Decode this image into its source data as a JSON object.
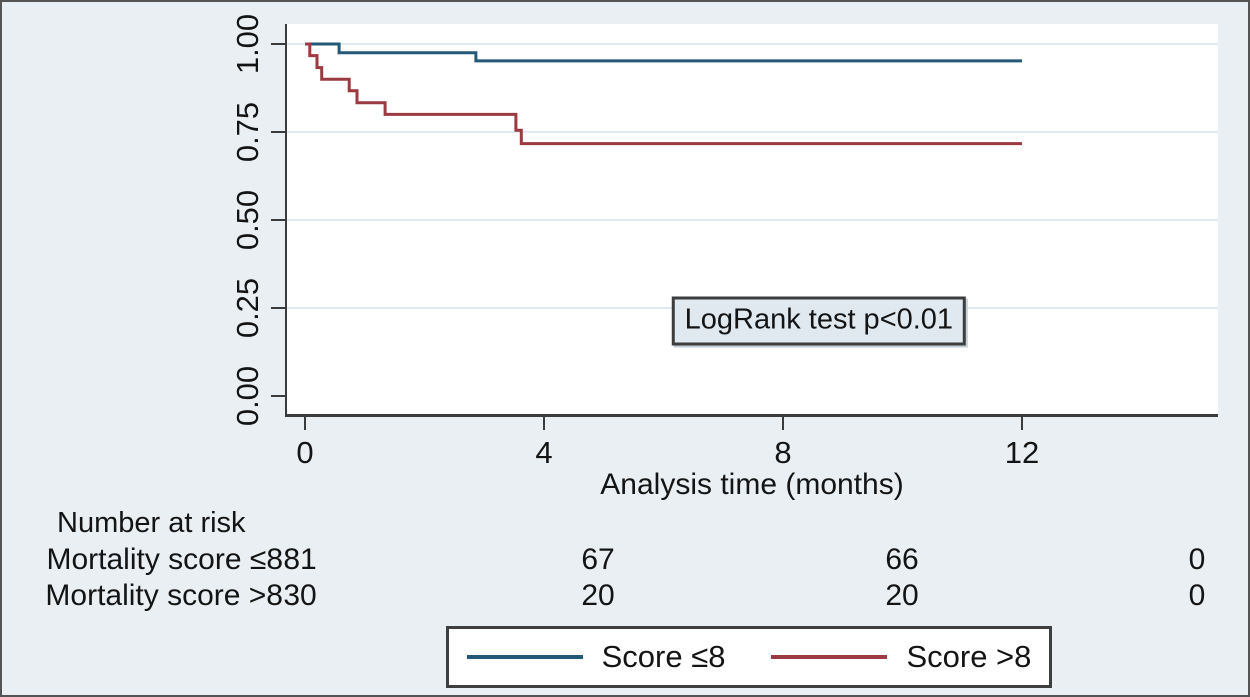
{
  "colors": {
    "background": "#e9eff2",
    "plot_background": "#ffffff",
    "grid": "#dfeaf2",
    "axis": "#3b3b3b",
    "navy": "#235879",
    "maroon": "#9c3a41"
  },
  "chart_data": {
    "type": "line",
    "subtype": "kaplan-meier-step",
    "title": "",
    "xlabel": "Analysis time (months)",
    "ylabel": "",
    "x_tick_labels": [
      "0",
      "4",
      "8",
      "12"
    ],
    "x_tick_values": [
      0,
      4,
      8,
      12
    ],
    "y_tick_labels": [
      "0.00",
      "0.25",
      "0.50",
      "0.75",
      "1.00"
    ],
    "y_tick_values": [
      0,
      0.25,
      0.5,
      0.75,
      1
    ],
    "xlim": [
      0,
      15.3
    ],
    "ylim": [
      0,
      1
    ],
    "grid": "horizontal",
    "legend_position": "bottom",
    "annotation": {
      "text": "LogRank test p<0.01",
      "x_months": 8.6,
      "y_survival": 0.213
    },
    "series": [
      {
        "name": "Score ≤8",
        "color": "#235879",
        "end_month": 12,
        "steps": [
          [
            0,
            1.0
          ],
          [
            0.57,
            0.975
          ],
          [
            2.86,
            0.952
          ]
        ]
      },
      {
        "name": "Score >8",
        "color": "#9c3a41",
        "end_month": 12,
        "steps": [
          [
            0,
            1.0
          ],
          [
            0.08,
            0.967
          ],
          [
            0.2,
            0.933
          ],
          [
            0.28,
            0.9
          ],
          [
            0.74,
            0.867
          ],
          [
            0.87,
            0.833
          ],
          [
            1.34,
            0.8
          ],
          [
            3.53,
            0.755
          ],
          [
            3.62,
            0.717
          ]
        ]
      }
    ],
    "risk_table": {
      "title": "Number at risk",
      "rows": [
        {
          "label": "Mortality score ≤8",
          "values": [
            "81",
            "67",
            "66",
            "0"
          ]
        },
        {
          "label": "Mortality score >8",
          "values": [
            "30",
            "20",
            "20",
            "0"
          ]
        }
      ]
    }
  }
}
